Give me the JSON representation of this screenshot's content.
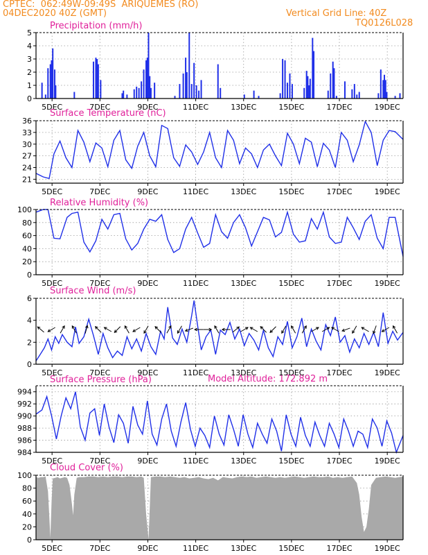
{
  "header": {
    "line1": "CPTEC:  062:49W-09:49S  ARIQUEMES (RO)",
    "line2": "04DEC2020 40Z (GMT)",
    "grid_note": "Vertical Grid Line: 40Z",
    "run_code": "TQ0126L028",
    "model_altitude": "Model Altitude: 172.892 m"
  },
  "colors": {
    "header": "#f28a1e",
    "title": "#e0209a",
    "series": "#1f2fe8",
    "cloud": "#a9a9a9",
    "arrow": "#000000",
    "grid": "#9a9a9a"
  },
  "x_axis": {
    "ticks": [
      "5DEC",
      "7DEC",
      "9DEC",
      "11DEC",
      "13DEC",
      "15DEC",
      "17DEC",
      "19DEC"
    ],
    "range_days": [
      0,
      15.33
    ],
    "tick_days": [
      0.67,
      2.67,
      4.67,
      6.67,
      8.67,
      10.67,
      12.67,
      14.67
    ]
  },
  "chart_data": [
    {
      "type": "bar",
      "title": "Precipitation (mm/h)",
      "ylim": [
        0,
        5
      ],
      "yticks": [
        "0",
        "1",
        "2",
        "3",
        "4",
        "5"
      ],
      "x": [
        0.25,
        0.4,
        0.5,
        0.6,
        0.65,
        0.7,
        0.78,
        0.82,
        1.6,
        2.4,
        2.5,
        2.55,
        2.6,
        2.7,
        3.6,
        3.65,
        3.8,
        4.1,
        4.2,
        4.3,
        4.4,
        4.5,
        4.6,
        4.65,
        4.7,
        4.75,
        4.8,
        4.95,
        5.8,
        6.0,
        6.15,
        6.25,
        6.3,
        6.4,
        6.5,
        6.6,
        6.7,
        6.8,
        6.9,
        7.6,
        7.7,
        8.7,
        9.1,
        9.3,
        10.2,
        10.3,
        10.4,
        10.5,
        10.6,
        10.7,
        11.2,
        11.3,
        11.35,
        11.4,
        11.45,
        11.55,
        11.6,
        12.2,
        12.3,
        12.4,
        12.45,
        12.55,
        12.9,
        13.2,
        13.3,
        13.4,
        13.5,
        14.3,
        14.4,
        14.5,
        14.55,
        14.6,
        14.65,
        15.0,
        15.2
      ],
      "values": [
        1.2,
        0.3,
        2.3,
        2.6,
        2.9,
        3.8,
        2.2,
        1.0,
        0.5,
        2.8,
        3.1,
        3.0,
        2.6,
        1.4,
        0.4,
        0.6,
        0.3,
        0.7,
        0.9,
        0.8,
        1.3,
        2.2,
        2.9,
        3.1,
        5.0,
        1.7,
        0.8,
        1.2,
        0.2,
        1.1,
        1.9,
        3.1,
        2.0,
        5.0,
        1.1,
        2.7,
        1.0,
        0.6,
        1.4,
        2.6,
        0.8,
        0.3,
        0.6,
        0.2,
        0.4,
        3.0,
        2.9,
        1.2,
        1.9,
        1.1,
        0.8,
        2.1,
        1.7,
        1.0,
        1.5,
        4.6,
        3.6,
        0.6,
        1.9,
        2.8,
        2.3,
        0.2,
        1.3,
        0.7,
        1.1,
        0.3,
        0.5,
        0.4,
        2.2,
        1.4,
        1.8,
        1.4,
        0.5,
        0.2,
        0.4
      ]
    },
    {
      "type": "line",
      "title": "Surface Temperature (nC)",
      "ylim": [
        20,
        36
      ],
      "yticks": [
        "21",
        "24",
        "27",
        "30",
        "33",
        "36"
      ],
      "ytick_values": [
        21,
        24,
        27,
        30,
        33,
        36
      ],
      "x": [
        0,
        0.3,
        0.55,
        0.75,
        1.0,
        1.25,
        1.5,
        1.75,
        2.0,
        2.25,
        2.5,
        2.75,
        3.0,
        3.25,
        3.5,
        3.75,
        4.0,
        4.25,
        4.5,
        4.75,
        5.0,
        5.25,
        5.5,
        5.75,
        6.0,
        6.25,
        6.5,
        6.75,
        7.0,
        7.25,
        7.5,
        7.75,
        8.0,
        8.25,
        8.5,
        8.75,
        9.0,
        9.25,
        9.5,
        9.75,
        10.0,
        10.25,
        10.5,
        10.75,
        11.0,
        11.25,
        11.5,
        11.75,
        12.0,
        12.25,
        12.5,
        12.75,
        13.0,
        13.25,
        13.5,
        13.75,
        14.0,
        14.25,
        14.5,
        14.75,
        15.0,
        15.33
      ],
      "values": [
        22.5,
        21.6,
        21.2,
        27.5,
        30.8,
        26.5,
        24.0,
        33.5,
        30.5,
        25.5,
        30.3,
        29.0,
        24.2,
        31.0,
        33.5,
        26.0,
        23.8,
        29.5,
        33.0,
        27.0,
        24.2,
        34.8,
        34.0,
        26.5,
        24.3,
        29.8,
        28.0,
        24.8,
        28.0,
        33.0,
        26.5,
        24.0,
        33.5,
        31.0,
        25.0,
        29.0,
        27.5,
        24.0,
        28.5,
        30.0,
        27.0,
        24.5,
        32.8,
        30.0,
        25.0,
        31.5,
        30.5,
        24.2,
        30.2,
        28.5,
        24.0,
        33.0,
        31.0,
        25.5,
        29.8,
        35.8,
        33.0,
        24.5,
        31.0,
        33.5,
        33.2,
        31.2
      ]
    },
    {
      "type": "line",
      "title": "Relative Humidity (%)",
      "ylim": [
        0,
        100
      ],
      "yticks": [
        "0",
        "20",
        "40",
        "60",
        "80",
        "100"
      ],
      "ytick_values": [
        0,
        20,
        40,
        60,
        80,
        100
      ],
      "x": [
        0,
        0.3,
        0.5,
        0.75,
        1.0,
        1.3,
        1.5,
        1.75,
        2.0,
        2.25,
        2.5,
        2.75,
        3.0,
        3.25,
        3.5,
        3.75,
        4.0,
        4.25,
        4.5,
        4.75,
        5.0,
        5.25,
        5.5,
        5.75,
        6.0,
        6.25,
        6.5,
        6.75,
        7.0,
        7.25,
        7.5,
        7.75,
        8.0,
        8.25,
        8.5,
        8.75,
        9.0,
        9.25,
        9.5,
        9.75,
        10.0,
        10.25,
        10.5,
        10.75,
        11.0,
        11.25,
        11.5,
        11.75,
        12.0,
        12.25,
        12.5,
        12.75,
        13.0,
        13.25,
        13.5,
        13.75,
        14.0,
        14.25,
        14.5,
        14.75,
        15.0,
        15.33
      ],
      "values": [
        96,
        100,
        100,
        56,
        55,
        88,
        94,
        96,
        50,
        35,
        52,
        85,
        70,
        92,
        94,
        55,
        38,
        48,
        70,
        85,
        82,
        92,
        54,
        34,
        40,
        70,
        88,
        64,
        42,
        48,
        92,
        66,
        56,
        80,
        92,
        72,
        44,
        66,
        88,
        84,
        58,
        65,
        96,
        62,
        50,
        52,
        86,
        70,
        96,
        58,
        48,
        50,
        88,
        72,
        54,
        82,
        92,
        56,
        40,
        88,
        88,
        28
      ]
    },
    {
      "type": "line",
      "title": "Surface Wind (m/s)",
      "ylim": [
        0,
        6
      ],
      "yticks": [
        "0",
        "2",
        "4",
        "6"
      ],
      "ytick_values": [
        0,
        2,
        4,
        6
      ],
      "x": [
        0,
        0.15,
        0.35,
        0.5,
        0.65,
        0.8,
        0.95,
        1.1,
        1.3,
        1.5,
        1.65,
        1.8,
        2.0,
        2.2,
        2.4,
        2.6,
        2.8,
        3.0,
        3.2,
        3.4,
        3.6,
        3.8,
        4.0,
        4.2,
        4.4,
        4.6,
        4.8,
        5.0,
        5.2,
        5.35,
        5.5,
        5.7,
        5.9,
        6.1,
        6.3,
        6.5,
        6.6,
        6.75,
        6.9,
        7.1,
        7.3,
        7.5,
        7.7,
        7.9,
        8.1,
        8.3,
        8.5,
        8.7,
        8.9,
        9.1,
        9.3,
        9.5,
        9.7,
        9.9,
        10.1,
        10.3,
        10.5,
        10.7,
        10.9,
        11.1,
        11.3,
        11.5,
        11.7,
        11.9,
        12.1,
        12.3,
        12.5,
        12.7,
        12.9,
        13.1,
        13.3,
        13.5,
        13.7,
        13.9,
        14.1,
        14.3,
        14.5,
        14.7,
        14.9,
        15.1,
        15.33
      ],
      "values": [
        0.3,
        0.8,
        1.5,
        2.3,
        1.3,
        2.5,
        1.9,
        2.7,
        2.0,
        1.6,
        3.4,
        1.9,
        2.5,
        4.1,
        2.6,
        0.9,
        2.8,
        1.5,
        0.6,
        1.2,
        0.8,
        2.5,
        1.4,
        2.3,
        1.2,
        2.8,
        1.6,
        0.9,
        3.0,
        2.3,
        5.2,
        2.4,
        1.8,
        3.2,
        2.0,
        4.4,
        5.8,
        3.5,
        1.3,
        2.5,
        3.1,
        0.9,
        3.1,
        2.7,
        3.8,
        2.3,
        3.2,
        1.7,
        2.8,
        2.2,
        1.3,
        3.1,
        1.5,
        0.7,
        2.5,
        1.8,
        3.9,
        1.5,
        2.5,
        4.2,
        1.6,
        3.2,
        2.1,
        1.3,
        3.6,
        2.6,
        4.3,
        2.0,
        2.6,
        1.1,
        2.3,
        1.5,
        2.8,
        1.8,
        2.9,
        1.6,
        4.7,
        1.9,
        3.0,
        2.2,
        2.9
      ],
      "arrows": [
        {
          "day": 0.2,
          "dir_deg": 140
        },
        {
          "day": 0.65,
          "dir_deg": 210
        },
        {
          "day": 1.1,
          "dir_deg": 60
        },
        {
          "day": 1.6,
          "dir_deg": 120
        },
        {
          "day": 2.1,
          "dir_deg": 75
        },
        {
          "day": 2.6,
          "dir_deg": 135
        },
        {
          "day": 3.0,
          "dir_deg": 150
        },
        {
          "day": 3.4,
          "dir_deg": 225
        },
        {
          "day": 3.8,
          "dir_deg": 120
        },
        {
          "day": 4.2,
          "dir_deg": 210
        },
        {
          "day": 4.6,
          "dir_deg": 240
        },
        {
          "day": 5.1,
          "dir_deg": 135
        },
        {
          "day": 5.55,
          "dir_deg": 60
        },
        {
          "day": 6.0,
          "dir_deg": 240
        },
        {
          "day": 6.4,
          "dir_deg": 200
        },
        {
          "day": 6.8,
          "dir_deg": 180
        },
        {
          "day": 7.15,
          "dir_deg": 0
        },
        {
          "day": 7.55,
          "dir_deg": 120
        },
        {
          "day": 7.95,
          "dir_deg": 180
        },
        {
          "day": 8.35,
          "dir_deg": 40
        },
        {
          "day": 8.7,
          "dir_deg": 30
        },
        {
          "day": 9.1,
          "dir_deg": 150
        },
        {
          "day": 9.5,
          "dir_deg": 135
        },
        {
          "day": 9.9,
          "dir_deg": 225
        },
        {
          "day": 10.35,
          "dir_deg": 240
        },
        {
          "day": 10.75,
          "dir_deg": 120
        },
        {
          "day": 11.2,
          "dir_deg": 60
        },
        {
          "day": 11.65,
          "dir_deg": 30
        },
        {
          "day": 12.1,
          "dir_deg": 30
        },
        {
          "day": 12.5,
          "dir_deg": 150
        },
        {
          "day": 12.95,
          "dir_deg": 200
        },
        {
          "day": 13.3,
          "dir_deg": 240
        },
        {
          "day": 13.75,
          "dir_deg": 150
        },
        {
          "day": 14.15,
          "dir_deg": 250
        },
        {
          "day": 14.6,
          "dir_deg": 210
        },
        {
          "day": 15.0,
          "dir_deg": 120
        }
      ]
    },
    {
      "type": "line",
      "title": "Surface Pressure (hPa)",
      "ylim": [
        984,
        995
      ],
      "yticks": [
        "984",
        "986",
        "988",
        "990",
        "992",
        "994"
      ],
      "ytick_values": [
        984,
        986,
        988,
        990,
        992,
        994
      ],
      "x": [
        0,
        0.25,
        0.45,
        0.65,
        0.85,
        1.05,
        1.25,
        1.45,
        1.65,
        1.85,
        2.05,
        2.25,
        2.45,
        2.65,
        2.85,
        3.05,
        3.25,
        3.45,
        3.65,
        3.85,
        4.05,
        4.25,
        4.45,
        4.65,
        4.85,
        5.05,
        5.25,
        5.45,
        5.65,
        5.85,
        6.05,
        6.25,
        6.45,
        6.65,
        6.85,
        7.05,
        7.25,
        7.45,
        7.65,
        7.85,
        8.05,
        8.25,
        8.45,
        8.65,
        8.85,
        9.05,
        9.25,
        9.45,
        9.65,
        9.85,
        10.05,
        10.25,
        10.45,
        10.65,
        10.85,
        11.05,
        11.25,
        11.45,
        11.65,
        11.85,
        12.05,
        12.25,
        12.45,
        12.65,
        12.85,
        13.05,
        13.25,
        13.45,
        13.65,
        13.85,
        14.05,
        14.25,
        14.45,
        14.65,
        14.85,
        15.05,
        15.33
      ],
      "values": [
        990.3,
        991.0,
        993.2,
        990.0,
        986.2,
        990.0,
        993.0,
        991.2,
        994.0,
        988.2,
        986.0,
        990.5,
        991.2,
        986.8,
        992.0,
        988.2,
        985.6,
        990.2,
        988.8,
        985.5,
        991.6,
        988.5,
        987.0,
        992.5,
        987.0,
        985.2,
        989.5,
        992.0,
        987.5,
        985.0,
        989.0,
        992.2,
        987.8,
        985.0,
        988.0,
        986.8,
        984.8,
        990.0,
        987.0,
        985.2,
        990.2,
        987.8,
        985.0,
        990.2,
        987.0,
        984.8,
        988.8,
        987.0,
        985.5,
        989.5,
        987.5,
        984.2,
        990.2,
        987.0,
        985.0,
        989.8,
        986.8,
        985.0,
        989.0,
        986.8,
        985.0,
        988.8,
        987.0,
        984.8,
        989.5,
        987.5,
        985.0,
        987.5,
        987.0,
        984.8,
        989.5,
        988.0,
        985.0,
        989.2,
        987.2,
        984.0,
        986.8
      ]
    },
    {
      "type": "area",
      "title": "Cloud Cover (%)",
      "ylim": [
        0,
        100
      ],
      "yticks": [
        "0",
        "20",
        "40",
        "60",
        "80",
        "100"
      ],
      "ytick_values": [
        0,
        20,
        40,
        60,
        80,
        100
      ],
      "x": [
        0,
        0.1,
        0.2,
        0.3,
        0.4,
        0.5,
        0.55,
        0.6,
        0.65,
        0.7,
        0.8,
        0.9,
        1.0,
        1.2,
        1.3,
        1.4,
        1.5,
        1.55,
        1.6,
        1.7,
        1.8,
        2.0,
        2.2,
        2.4,
        2.6,
        2.8,
        3.0,
        3.2,
        3.4,
        3.6,
        3.8,
        4.0,
        4.2,
        4.4,
        4.5,
        4.6,
        4.7,
        4.8,
        5.0,
        5.2,
        5.4,
        5.6,
        5.8,
        6.0,
        6.2,
        6.4,
        6.6,
        6.8,
        7.0,
        7.2,
        7.4,
        7.6,
        7.8,
        8.0,
        8.2,
        8.4,
        8.6,
        8.8,
        9.0,
        9.2,
        9.4,
        9.6,
        9.8,
        10.0,
        10.2,
        10.4,
        10.6,
        10.8,
        11.0,
        11.2,
        11.4,
        11.6,
        11.8,
        12.0,
        12.2,
        12.4,
        12.6,
        12.8,
        13.0,
        13.2,
        13.4,
        13.5,
        13.6,
        13.7,
        13.8,
        13.9,
        14.0,
        14.2,
        14.4,
        14.6,
        14.8,
        15.0,
        15.33
      ],
      "values": [
        97,
        96,
        97,
        97,
        98,
        75,
        40,
        3,
        60,
        95,
        96,
        97,
        95,
        97,
        96,
        85,
        55,
        38,
        70,
        96,
        97,
        97,
        98,
        98,
        97,
        98,
        97,
        98,
        98,
        97,
        98,
        98,
        97,
        98,
        96,
        40,
        1,
        97,
        98,
        98,
        97,
        98,
        97,
        96,
        97,
        95,
        96,
        97,
        95,
        94,
        96,
        92,
        97,
        96,
        95,
        97,
        98,
        97,
        98,
        96,
        97,
        98,
        97,
        96,
        97,
        96,
        97,
        98,
        97,
        96,
        97,
        98,
        97,
        97,
        98,
        96,
        97,
        96,
        97,
        98,
        88,
        70,
        35,
        12,
        20,
        48,
        85,
        96,
        97,
        98,
        97,
        96,
        98
      ]
    }
  ]
}
